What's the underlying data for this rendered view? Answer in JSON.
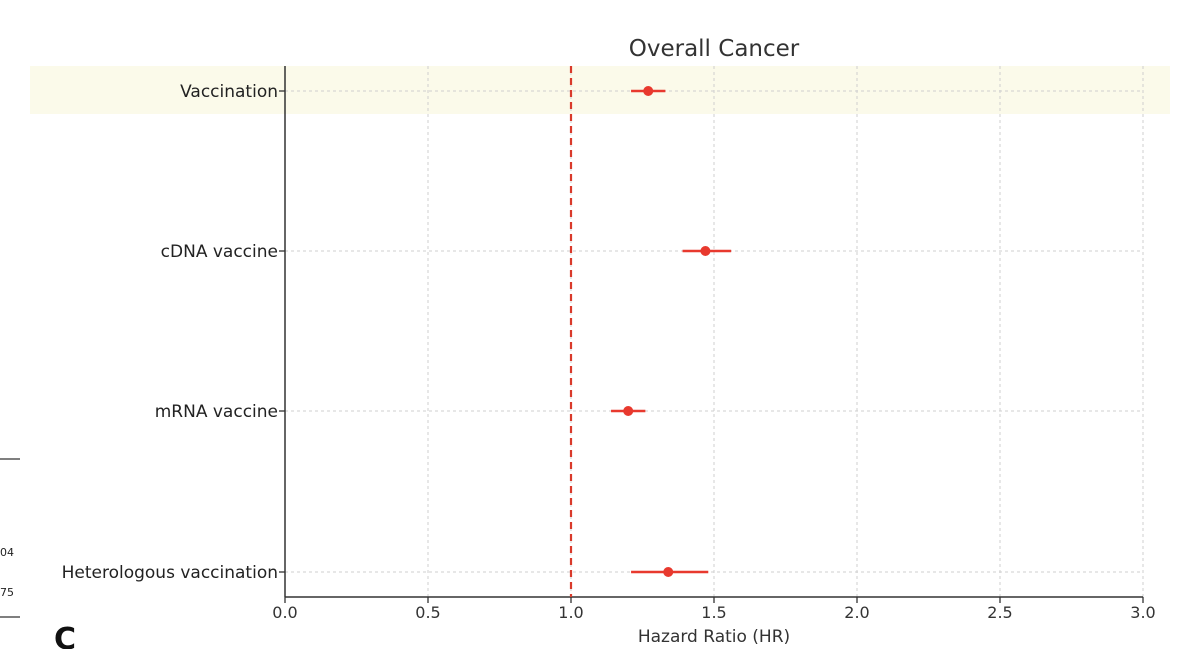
{
  "panel_letter": "C",
  "fragments": [
    "04",
    "75"
  ],
  "chart_data": {
    "type": "forest",
    "title": "Overall Cancer",
    "xlabel": "Hazard Ratio (HR)",
    "ylabel": "",
    "xlim": [
      0.0,
      3.0
    ],
    "xticks": [
      0.0,
      0.5,
      1.0,
      1.5,
      2.0,
      2.5,
      3.0
    ],
    "xtick_labels": [
      "0.0",
      "0.5",
      "1.0",
      "1.5",
      "2.0",
      "2.5",
      "3.0"
    ],
    "reference_line": 1.0,
    "grid": true,
    "highlighted_row": "Vaccination",
    "colors": {
      "point": "#e8392e",
      "reference": "#d93a2b",
      "highlight": "#fbfaea",
      "grid": "#cfcfcf"
    },
    "rows": [
      {
        "label": "Vaccination",
        "hr": 1.27,
        "lo": 1.21,
        "hi": 1.33
      },
      {
        "label": "cDNA vaccine",
        "hr": 1.47,
        "lo": 1.39,
        "hi": 1.56
      },
      {
        "label": "mRNA vaccine",
        "hr": 1.2,
        "lo": 1.14,
        "hi": 1.26
      },
      {
        "label": "Heterologous vaccination",
        "hr": 1.34,
        "lo": 1.21,
        "hi": 1.48
      }
    ]
  }
}
